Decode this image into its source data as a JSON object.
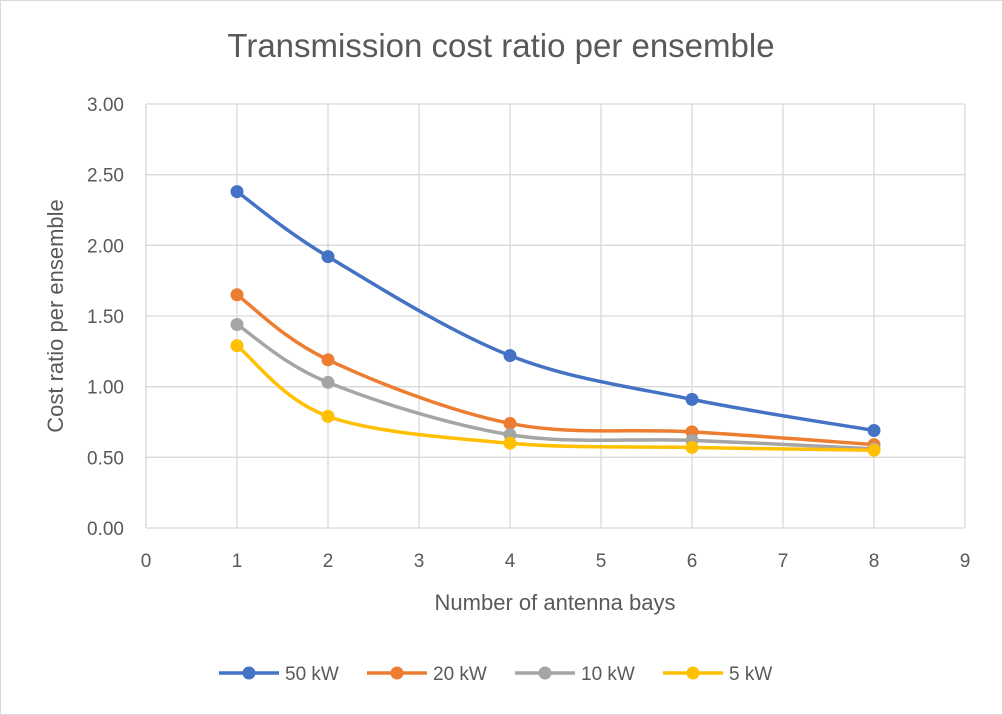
{
  "chart_data": {
    "type": "line",
    "title": "Transmission cost ratio per ensemble",
    "xlabel": "Number of antenna bays",
    "ylabel": "Cost ratio per ensemble",
    "xlim": [
      0,
      9
    ],
    "ylim": [
      0,
      3
    ],
    "x_ticks": [
      "0",
      "1",
      "2",
      "3",
      "4",
      "5",
      "6",
      "7",
      "8",
      "9"
    ],
    "y_ticks": [
      "0.00",
      "0.50",
      "1.00",
      "1.50",
      "2.00",
      "2.50",
      "3.00"
    ],
    "grid": true,
    "smooth": true,
    "legend_position": "bottom",
    "x": [
      1,
      2,
      4,
      6,
      8
    ],
    "series": [
      {
        "name": "50 kW",
        "color": "#4472C4",
        "values": [
          2.38,
          1.92,
          1.22,
          0.91,
          0.69
        ]
      },
      {
        "name": "20 kW",
        "color": "#ED7D31",
        "values": [
          1.65,
          1.19,
          0.74,
          0.68,
          0.59
        ]
      },
      {
        "name": "10 kW",
        "color": "#A5A5A5",
        "values": [
          1.44,
          1.03,
          0.66,
          0.62,
          0.56
        ]
      },
      {
        "name": "5 kW",
        "color": "#FFC000",
        "values": [
          1.29,
          0.79,
          0.6,
          0.57,
          0.55
        ]
      }
    ]
  }
}
